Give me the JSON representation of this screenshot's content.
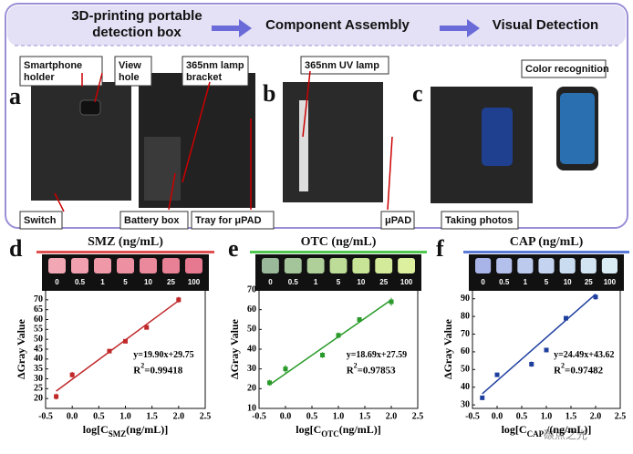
{
  "header": {
    "step1": [
      "3D-printing portable",
      "detection box"
    ],
    "step2": "Component Assembly",
    "step3": "Visual Detection"
  },
  "panel_letters": [
    "a",
    "b",
    "c",
    "d",
    "e",
    "f"
  ],
  "callouts": [
    [
      "Smartphone",
      "holder"
    ],
    [
      "View",
      "hole"
    ],
    [
      "365nm lamp",
      "bracket"
    ],
    [
      "365nm UV lamp"
    ],
    [
      "Color recognition"
    ],
    [
      "Switch"
    ],
    [
      "Battery box"
    ],
    [
      "Tray for μPAD"
    ],
    [
      "μPAD"
    ],
    [
      "Taking photos"
    ]
  ],
  "watermark": "碳点之光",
  "chart_data": [
    {
      "type": "scatter",
      "title": "SMZ (ng/mL)",
      "color": "#c0282a",
      "band": "#e05050",
      "swatch_labels": [
        "0",
        "0.5",
        "1",
        "5",
        "10",
        "25",
        "100"
      ],
      "swatch_colors": [
        "#f2a8b4",
        "#f0a0ae",
        "#ee98a8",
        "#ec90a2",
        "#ea889c",
        "#e88096",
        "#e67890"
      ],
      "x": [
        -0.301,
        0,
        0.699,
        1,
        1.398,
        2
      ],
      "values": [
        21,
        32,
        44,
        49,
        56,
        70
      ],
      "errors": [
        1.5,
        1.5,
        1,
        1,
        1,
        1.5
      ],
      "slope": 19.9,
      "intercept": 29.75,
      "equation": "y=19.90x+29.75",
      "r2": [
        "R",
        "2",
        "=0.99418"
      ],
      "ylabel": "ΔGray Value",
      "xlabel": [
        "log[C",
        "SMZ",
        "(ng/mL)]"
      ],
      "xlim": [
        -0.5,
        2.5
      ],
      "xticks": [
        -0.5,
        {
          "value": 0,
          "label": "0.0"
        },
        0.5,
        {
          "value": 1,
          "label": "1.0"
        },
        1.5,
        {
          "value": 2,
          "label": "2.0"
        },
        2.5
      ],
      "ylim": [
        15,
        75
      ],
      "yticks": [
        20,
        25,
        30,
        35,
        40,
        45,
        50,
        55,
        60,
        65,
        70
      ]
    },
    {
      "type": "scatter",
      "title": "OTC (ng/mL)",
      "color": "#2a9a2a",
      "band": "#50c850",
      "swatch_labels": [
        "0",
        "0.5",
        "1",
        "5",
        "10",
        "25",
        "100"
      ],
      "swatch_colors": [
        "#9ab89a",
        "#a4c49a",
        "#b0d09a",
        "#bcdc98",
        "#c8e496",
        "#d2ea9a",
        "#dcf0a0"
      ],
      "x": [
        -0.301,
        0,
        0.699,
        1,
        1.398,
        2
      ],
      "values": [
        23,
        30,
        37,
        47,
        55,
        64
      ],
      "errors": [
        1.5,
        2,
        1.5,
        1.5,
        1,
        2
      ],
      "slope": 18.69,
      "intercept": 27.59,
      "equation": "y=18.69x+27.59",
      "r2": [
        "R",
        "2",
        "=0.97853"
      ],
      "ylabel": "ΔGray Value",
      "xlabel": [
        "log[C",
        "OTC",
        "(ng/mL)]"
      ],
      "xlim": [
        -0.5,
        2.5
      ],
      "xticks": [
        -0.5,
        {
          "value": 0,
          "label": "0.0"
        },
        0.5,
        {
          "value": 1,
          "label": "1.0"
        },
        1.5,
        {
          "value": 2,
          "label": "2.0"
        },
        2.5
      ],
      "ylim": [
        10,
        70
      ],
      "yticks": [
        10,
        20,
        30,
        40,
        50,
        60,
        70
      ]
    },
    {
      "type": "scatter",
      "title": "CAP (ng/mL)",
      "color": "#1f3f9f",
      "band": "#5a7ad8",
      "swatch_labels": [
        "0",
        "0.5",
        "1",
        "5",
        "10",
        "25",
        "100"
      ],
      "swatch_colors": [
        "#a8b4e8",
        "#b4c0ec",
        "#bccaee",
        "#c4d4f0",
        "#cadcf0",
        "#d2e4f2",
        "#daecf4"
      ],
      "x": [
        -0.301,
        0,
        0.699,
        1,
        1.398,
        2
      ],
      "values": [
        34,
        47,
        53,
        61,
        79,
        91
      ],
      "errors": [
        1,
        1,
        1.5,
        1,
        1,
        1.5
      ],
      "slope": 24.49,
      "intercept": 43.62,
      "equation": "y=24.49x+43.62",
      "r2": [
        "R",
        "2",
        "=0.97482"
      ],
      "ylabel": "ΔGray Value",
      "xlabel": [
        "log[C",
        "CAP",
        " /(ng/mL)]"
      ],
      "xlim": [
        -0.5,
        2.5
      ],
      "xticks": [
        -0.5,
        {
          "value": 0,
          "label": "0.0"
        },
        0.5,
        {
          "value": 1,
          "label": "1.0"
        },
        1.5,
        {
          "value": 2,
          "label": "2.0"
        },
        2.5
      ],
      "ylim": [
        28,
        95
      ],
      "yticks": [
        30,
        40,
        50,
        60,
        70,
        80,
        90
      ]
    }
  ]
}
